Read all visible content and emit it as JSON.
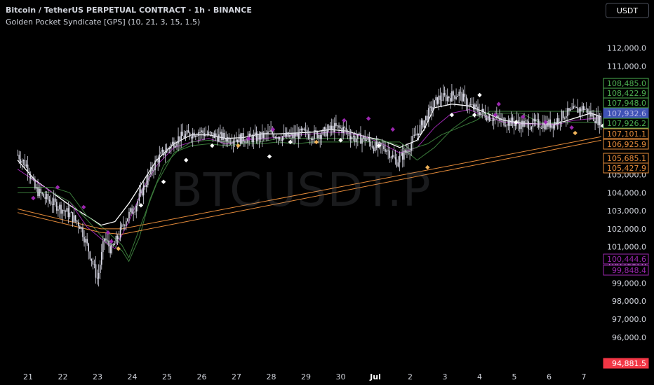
{
  "header": {
    "title": "Bitcoin / TetherUS PERPETUAL CONTRACT · 1h · BINANCE",
    "indicator": "Golden Pocket Syndicate [GPS] (10, 21, 3, 15, 1.5)"
  },
  "currency_button": "USDT",
  "watermark": "BTCUSDT.P",
  "colors": {
    "background": "#000000",
    "candle": "#d9d9e6",
    "white_ma": "#ffffff",
    "purple": "#9c27b0",
    "green": "#3a7a3a",
    "orange": "#e58b3a",
    "diamond_white": "#ffffff",
    "diamond_purple": "#9c27b0",
    "diamond_orange": "#f0b35a"
  },
  "chart_data": {
    "type": "candlestick",
    "symbol": "BTCUSDT.P",
    "timeframe": "1h",
    "y_ticks": [
      "112,000.0",
      "111,000.0",
      "110,000.0",
      "105,000.0",
      "104,000.0",
      "103,000.0",
      "102,000.0",
      "101,000.0",
      "100,000.0",
      "99,000.0",
      "98,000.0",
      "97,000.0",
      "96,000.0"
    ],
    "x_ticks": [
      "21",
      "22",
      "23",
      "24",
      "25",
      "26",
      "27",
      "28",
      "29",
      "30",
      "Jul",
      "2",
      "3",
      "4",
      "5",
      "6",
      "7"
    ],
    "ylim": [
      94600,
      112800
    ],
    "price_labels": [
      {
        "text": "108,485.0",
        "value": 108485.0,
        "color": "#4caf50",
        "style": "outline"
      },
      {
        "text": "108,422.9",
        "value": 108422.9,
        "color": "#4caf50",
        "style": "outline"
      },
      {
        "text": "107,948.0",
        "value": 107948.0,
        "color": "#4caf50",
        "style": "outline"
      },
      {
        "text": "107,932.6",
        "value": 107932.6,
        "color": "#3f51b5",
        "style": "filled"
      },
      {
        "text": "107,926.2",
        "value": 107926.2,
        "color": "#4caf50",
        "style": "outline"
      },
      {
        "text": "107,101.1",
        "value": 107101.1,
        "color": "#e58b3a",
        "style": "outline"
      },
      {
        "text": "106,925.9",
        "value": 106925.9,
        "color": "#e58b3a",
        "style": "outline"
      },
      {
        "text": "105,685.1",
        "value": 105685.1,
        "color": "#e58b3a",
        "style": "outline"
      },
      {
        "text": "105,427.9",
        "value": 105427.9,
        "color": "#e58b3a",
        "style": "outline"
      },
      {
        "text": "100,444.6",
        "value": 100444.6,
        "color": "#9c27b0",
        "style": "outline"
      },
      {
        "text": "99,848.4",
        "value": 99848.4,
        "color": "#9c27b0",
        "style": "outline"
      },
      {
        "text": "94,881.5",
        "value": 94881.5,
        "color": "#f23645",
        "style": "filled"
      }
    ],
    "close_path": [
      [
        0,
        106100
      ],
      [
        0.3,
        105400
      ],
      [
        0.5,
        104200
      ],
      [
        0.8,
        103700
      ],
      [
        1.2,
        103200
      ],
      [
        1.5,
        102800
      ],
      [
        1.8,
        102200
      ],
      [
        2.1,
        100500
      ],
      [
        2.3,
        99200
      ],
      [
        2.5,
        101500
      ],
      [
        2.7,
        100800
      ],
      [
        2.9,
        101600
      ],
      [
        3.1,
        102500
      ],
      [
        3.4,
        103300
      ],
      [
        3.7,
        104600
      ],
      [
        4.0,
        105800
      ],
      [
        4.3,
        106400
      ],
      [
        4.6,
        107000
      ],
      [
        4.9,
        107200
      ],
      [
        5.2,
        107400
      ],
      [
        5.5,
        107200
      ],
      [
        5.8,
        107100
      ],
      [
        6.1,
        107000
      ],
      [
        6.4,
        107000
      ],
      [
        6.7,
        107000
      ],
      [
        7.0,
        107100
      ],
      [
        7.3,
        107300
      ],
      [
        7.6,
        107100
      ],
      [
        7.9,
        107100
      ],
      [
        8.2,
        107300
      ],
      [
        8.5,
        107200
      ],
      [
        8.8,
        107300
      ],
      [
        9.1,
        107600
      ],
      [
        9.4,
        107500
      ],
      [
        9.7,
        107000
      ],
      [
        10.0,
        107000
      ],
      [
        10.3,
        106500
      ],
      [
        10.6,
        106500
      ],
      [
        10.9,
        105700
      ],
      [
        11.2,
        106300
      ],
      [
        11.5,
        107300
      ],
      [
        11.8,
        108300
      ],
      [
        12.1,
        109200
      ],
      [
        12.4,
        109300
      ],
      [
        12.7,
        109500
      ],
      [
        13.0,
        108800
      ],
      [
        13.3,
        108500
      ],
      [
        13.6,
        108200
      ],
      [
        13.9,
        108000
      ],
      [
        14.2,
        107900
      ],
      [
        14.5,
        107800
      ],
      [
        14.8,
        107800
      ],
      [
        15.1,
        107800
      ],
      [
        15.4,
        107800
      ],
      [
        15.7,
        108300
      ],
      [
        16.0,
        108500
      ],
      [
        16.3,
        108700
      ],
      [
        16.5,
        108300
      ],
      [
        16.8,
        107900
      ]
    ],
    "lines": {
      "white_ma": [
        [
          0,
          105800
        ],
        [
          0.5,
          104700
        ],
        [
          1,
          104000
        ],
        [
          1.5,
          103300
        ],
        [
          2,
          102700
        ],
        [
          2.4,
          102200
        ],
        [
          2.8,
          102400
        ],
        [
          3.2,
          103400
        ],
        [
          3.6,
          104600
        ],
        [
          4,
          105800
        ],
        [
          4.5,
          106700
        ],
        [
          5,
          107200
        ],
        [
          5.5,
          107200
        ],
        [
          6,
          107000
        ],
        [
          6.5,
          107050
        ],
        [
          7,
          107250
        ],
        [
          7.5,
          107250
        ],
        [
          8,
          107300
        ],
        [
          8.5,
          107350
        ],
        [
          9,
          107500
        ],
        [
          9.5,
          107400
        ],
        [
          10,
          107100
        ],
        [
          10.5,
          106900
        ],
        [
          11,
          106500
        ],
        [
          11.5,
          106900
        ],
        [
          11.7,
          107500
        ],
        [
          12,
          108700
        ],
        [
          12.5,
          108900
        ],
        [
          13,
          108800
        ],
        [
          13.5,
          108400
        ],
        [
          14,
          108000
        ],
        [
          14.5,
          107850
        ],
        [
          15,
          107800
        ],
        [
          15.5,
          107800
        ],
        [
          16,
          108100
        ],
        [
          16.5,
          108400
        ],
        [
          16.8,
          108200
        ]
      ],
      "purple": [
        [
          0,
          105300
        ],
        [
          1,
          104000
        ],
        [
          1.5,
          103500
        ],
        [
          2,
          102100
        ],
        [
          2.5,
          101300
        ],
        [
          2.8,
          100900
        ],
        [
          3.2,
          102400
        ],
        [
          3.6,
          104200
        ],
        [
          4,
          105500
        ],
        [
          4.5,
          106500
        ],
        [
          5,
          106800
        ],
        [
          5.5,
          107000
        ],
        [
          6,
          106700
        ],
        [
          6.5,
          106900
        ],
        [
          7,
          107000
        ],
        [
          7.5,
          107050
        ],
        [
          8,
          107200
        ],
        [
          8.5,
          107250
        ],
        [
          9,
          107350
        ],
        [
          9.5,
          107300
        ],
        [
          10,
          107100
        ],
        [
          10.5,
          106700
        ],
        [
          11,
          106200
        ],
        [
          11.5,
          106500
        ],
        [
          12,
          107600
        ],
        [
          12.5,
          108400
        ],
        [
          13,
          108600
        ],
        [
          13.5,
          108200
        ],
        [
          14,
          107900
        ],
        [
          14.5,
          107800
        ],
        [
          15,
          107800
        ],
        [
          15.5,
          107750
        ],
        [
          16,
          108000
        ],
        [
          16.8,
          108150
        ]
      ],
      "green": [
        [
          0,
          104300
        ],
        [
          1,
          104300
        ],
        [
          1.5,
          104000
        ],
        [
          2,
          102700
        ],
        [
          2.5,
          102000
        ],
        [
          3,
          101100
        ],
        [
          3.2,
          100400
        ],
        [
          3.6,
          102500
        ],
        [
          4,
          104500
        ],
        [
          4.5,
          106200
        ],
        [
          5,
          106800
        ],
        [
          5.5,
          106900
        ],
        [
          6,
          106800
        ],
        [
          6.5,
          106800
        ],
        [
          7,
          106800
        ],
        [
          7.5,
          107000
        ],
        [
          8,
          107000
        ],
        [
          8.5,
          107000
        ],
        [
          9,
          107000
        ],
        [
          9.5,
          107000
        ],
        [
          10,
          107000
        ],
        [
          10.5,
          106900
        ],
        [
          11,
          106600
        ],
        [
          11.5,
          105800
        ],
        [
          12,
          106500
        ],
        [
          12.5,
          107500
        ],
        [
          13,
          108200
        ],
        [
          13.5,
          108400
        ],
        [
          14,
          108400
        ],
        [
          14.5,
          108400
        ],
        [
          15,
          107900
        ],
        [
          15.5,
          107900
        ],
        [
          16,
          107900
        ],
        [
          16.8,
          107900
        ]
      ],
      "green2": [
        [
          0,
          104000
        ],
        [
          1,
          104000
        ],
        [
          1.5,
          103500
        ],
        [
          2,
          102500
        ],
        [
          2.5,
          101400
        ],
        [
          3,
          100800
        ],
        [
          3.2,
          100200
        ],
        [
          3.5,
          101500
        ],
        [
          3.8,
          103600
        ],
        [
          4.2,
          105500
        ],
        [
          4.6,
          106300
        ],
        [
          5,
          106600
        ],
        [
          5.5,
          106700
        ],
        [
          6,
          106600
        ],
        [
          6.5,
          106700
        ],
        [
          7,
          106700
        ],
        [
          7.5,
          106800
        ],
        [
          8,
          106700
        ],
        [
          8.5,
          106800
        ],
        [
          9,
          106800
        ],
        [
          9.5,
          106800
        ],
        [
          10,
          106800
        ],
        [
          10.5,
          106800
        ],
        [
          11,
          106800
        ],
        [
          11.3,
          106400
        ],
        [
          11.8,
          106700
        ],
        [
          12.2,
          107200
        ],
        [
          12.7,
          107600
        ],
        [
          13.2,
          108000
        ],
        [
          13.6,
          108500
        ],
        [
          14,
          108500
        ],
        [
          14.5,
          108500
        ],
        [
          15,
          108500
        ],
        [
          15.5,
          108500
        ],
        [
          16,
          108500
        ],
        [
          16.8,
          108500
        ]
      ],
      "orange_1": [
        [
          0,
          103100
        ],
        [
          2.4,
          102000
        ],
        [
          3,
          102000
        ],
        [
          16.8,
          107100
        ]
      ],
      "orange_2": [
        [
          0,
          102900
        ],
        [
          2.4,
          101800
        ],
        [
          3,
          101700
        ],
        [
          16.8,
          106900
        ]
      ]
    },
    "diamonds": [
      {
        "x": 0.45,
        "y": 103700,
        "color": "purple"
      },
      {
        "x": 1.15,
        "y": 104300,
        "color": "purple"
      },
      {
        "x": 1.9,
        "y": 103200,
        "color": "purple"
      },
      {
        "x": 2.7,
        "y": 101300,
        "color": "purple"
      },
      {
        "x": 2.9,
        "y": 100900,
        "color": "orange"
      },
      {
        "x": 2.6,
        "y": 101800,
        "color": "purple"
      },
      {
        "x": 3.55,
        "y": 103300,
        "color": "white"
      },
      {
        "x": 4.2,
        "y": 104600,
        "color": "white"
      },
      {
        "x": 4.85,
        "y": 105800,
        "color": "white"
      },
      {
        "x": 5.6,
        "y": 106600,
        "color": "white"
      },
      {
        "x": 6.35,
        "y": 106600,
        "color": "orange"
      },
      {
        "x": 6.65,
        "y": 107000,
        "color": "purple"
      },
      {
        "x": 7.25,
        "y": 106000,
        "color": "white"
      },
      {
        "x": 7.35,
        "y": 107500,
        "color": "purple"
      },
      {
        "x": 7.85,
        "y": 106800,
        "color": "white"
      },
      {
        "x": 8.6,
        "y": 106800,
        "color": "orange"
      },
      {
        "x": 9.3,
        "y": 106900,
        "color": "white"
      },
      {
        "x": 9.4,
        "y": 108000,
        "color": "purple"
      },
      {
        "x": 10.1,
        "y": 108100,
        "color": "purple"
      },
      {
        "x": 10.4,
        "y": 106600,
        "color": "white"
      },
      {
        "x": 10.8,
        "y": 107500,
        "color": "purple"
      },
      {
        "x": 11.8,
        "y": 105400,
        "color": "orange"
      },
      {
        "x": 12.5,
        "y": 108300,
        "color": "white"
      },
      {
        "x": 13.15,
        "y": 108300,
        "color": "white"
      },
      {
        "x": 13.3,
        "y": 109400,
        "color": "white"
      },
      {
        "x": 13.85,
        "y": 108900,
        "color": "purple"
      },
      {
        "x": 13.75,
        "y": 108300,
        "color": "purple"
      },
      {
        "x": 14.35,
        "y": 107900,
        "color": "white"
      },
      {
        "x": 14.55,
        "y": 108200,
        "color": "purple"
      },
      {
        "x": 15.2,
        "y": 107900,
        "color": "purple"
      },
      {
        "x": 15.95,
        "y": 107600,
        "color": "purple"
      },
      {
        "x": 16.05,
        "y": 107300,
        "color": "orange"
      },
      {
        "x": 16.85,
        "y": 107700,
        "color": "white"
      },
      {
        "x": 17.0,
        "y": 108700,
        "color": "purple"
      }
    ]
  }
}
